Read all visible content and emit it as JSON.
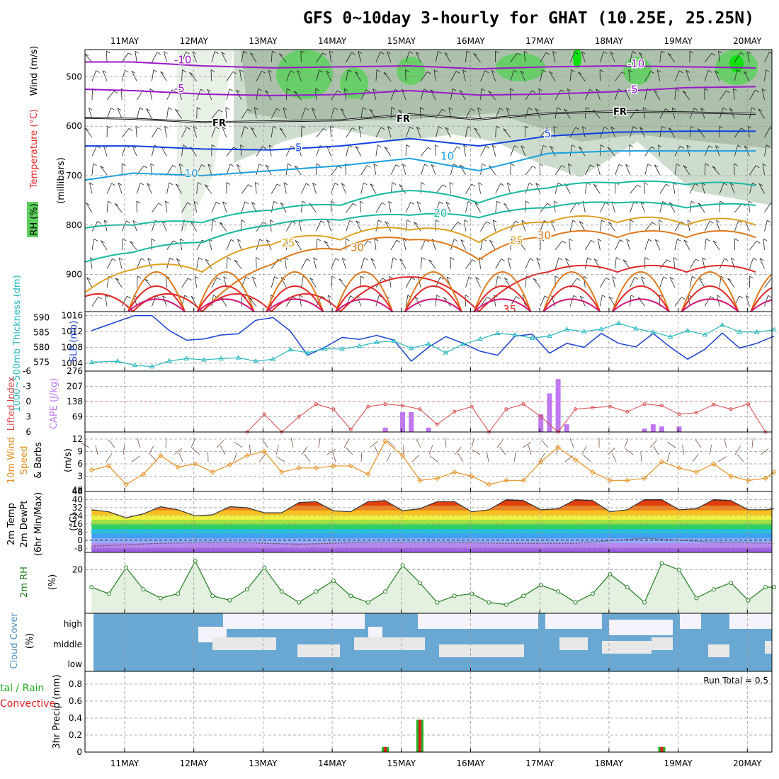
{
  "title": "GFS 0~10day 3-hourly for GHAT (10.25E, 25.25N)",
  "dates": [
    "11MAY",
    "12MAY",
    "13MAY",
    "14MAY",
    "15MAY",
    "16MAY",
    "17MAY",
    "18MAY",
    "19MAY",
    "20MAY"
  ],
  "colors": {
    "rh_light": "#e6f0e2",
    "rh_mid": "#c8d8c8",
    "rh_dark": "#a8bca8",
    "rh_green": "#5cd05c",
    "rh_bright": "#10e010",
    "purple": "#9a18c8",
    "blue": "#1040e0",
    "cyan": "#18a0e0",
    "teal": "#18b8a0",
    "gold": "#e0a020",
    "orange": "#e07818",
    "red": "#e02828",
    "magenta": "#d0187a",
    "slp": "#1840d0",
    "thickness": "#28b8c0",
    "lifted": "#d84848",
    "cape": "#c078f0",
    "wind10": "#e89020",
    "cloud": "#6aa8d4",
    "precip_total": "#20b020",
    "precip_conv": "#e02020"
  },
  "panels": {
    "upper": {
      "ylabel_wind": "Wind (m/s)",
      "ylabel_temp": "Temperature (°C)",
      "ylabel_rh": "RH (%)",
      "ylabel_units": "(millibars)",
      "yticks": [
        500,
        600,
        700,
        800,
        900
      ],
      "fr_label": "FR",
      "contour_labels": [
        {
          "t": -10,
          "at": [
            1.35,
            7.9
          ]
        },
        {
          "t": -5,
          "at": [
            1.35,
            7.9
          ]
        },
        {
          "t": 5,
          "at": [
            -0.2,
            3.1,
            6.7
          ]
        },
        {
          "t": 10,
          "at": [
            1.5,
            5.2
          ]
        },
        {
          "t": 15,
          "at": [
            -0.4
          ]
        },
        {
          "t": 20,
          "at": [
            5.1
          ]
        },
        {
          "t": 25,
          "at": [
            2.9,
            6.2
          ]
        },
        {
          "t": 30,
          "at": [
            3.9,
            6.6
          ]
        },
        {
          "t": 35,
          "at": [
            6.1
          ]
        }
      ]
    },
    "pressure": {
      "ylabel_left": "1000~500mb Thickness (dm)",
      "ylabel_right": "SLP (mb)",
      "left_ticks": [
        575,
        580,
        585,
        590
      ],
      "right_ticks": [
        1004,
        1008,
        1012,
        1016
      ]
    },
    "instability": {
      "ylabel_left": "Lifted Index",
      "ylabel_right": "CAPE (J/kg)",
      "left_ticks": [
        "-6",
        "-3",
        "0",
        "3",
        "6"
      ],
      "right_ticks": [
        "276",
        "207",
        "138",
        "69"
      ]
    },
    "wind10": {
      "ylabel_a": "10m Wind",
      "ylabel_b": "Speed",
      "ylabel_c": "& Barbs",
      "ylabel_units": "(m/s)",
      "yticks": [
        48,
        3,
        6,
        9,
        12
      ]
    },
    "temp2m": {
      "ylabel_a": "2m Temp",
      "ylabel_b": "2m DewPt",
      "ylabel_c": "(6hr Min/Max)",
      "ylabel_units": "(°C)",
      "yticks": [
        -8,
        0,
        8,
        16,
        24,
        32,
        40,
        48
      ]
    },
    "rh2m": {
      "ylabel": "2m RH",
      "ylabel_units": "(%)",
      "yticks": [
        20
      ]
    },
    "cloud": {
      "ylabel": "Cloud Cover",
      "ylabel_units": "(%)",
      "levels": [
        "high",
        "middle",
        "low"
      ]
    },
    "precip": {
      "ylabel_a": "tal / Rain",
      "ylabel_b": "Convective",
      "ylabel_units": "3hr Precip (mm)",
      "yticks": [
        "0",
        "0.2",
        "0.4",
        "0.6",
        "0.8"
      ],
      "run_total_label": "Run Total = 0.5"
    }
  },
  "chart_data": [
    {
      "type": "line",
      "name": "upper-air cross-section (isotherms, RH shading, wind barbs)",
      "y_unit": "millibars",
      "ylim": [
        975,
        445
      ],
      "x_days": [
        0,
        1,
        2,
        3,
        4,
        5,
        6,
        7,
        8,
        9,
        10
      ],
      "isotherms": [
        {
          "t": -10,
          "p": [
            470,
            470,
            478,
            482,
            480,
            478,
            484,
            480,
            478,
            480,
            482
          ]
        },
        {
          "t": -5,
          "p": [
            524,
            528,
            535,
            538,
            536,
            528,
            537,
            535,
            530,
            522,
            520
          ]
        },
        {
          "t": 0,
          "p": [
            582,
            585,
            592,
            590,
            588,
            576,
            586,
            574,
            570,
            572,
            575
          ]
        },
        {
          "t": 5,
          "p": [
            640,
            640,
            646,
            648,
            640,
            625,
            640,
            620,
            612,
            610,
            610
          ]
        },
        {
          "t": 10,
          "p": [
            715,
            695,
            700,
            690,
            680,
            665,
            690,
            655,
            650,
            650,
            650
          ]
        },
        {
          "t": 15,
          "p": [
            815,
            800,
            795,
            770,
            760,
            730,
            755,
            725,
            715,
            718,
            720
          ]
        },
        {
          "t": 20,
          "p": [
            890,
            855,
            835,
            800,
            790,
            780,
            785,
            765,
            755,
            765,
            760
          ]
        },
        {
          "t": 25,
          "p": [
            975,
            890,
            895,
            840,
            830,
            810,
            835,
            795,
            795,
            800,
            800
          ]
        },
        {
          "t": 30,
          "p": [
            975,
            975,
            975,
            880,
            850,
            830,
            870,
            825,
            825,
            825,
            825
          ]
        },
        {
          "t": 35,
          "p": [
            975,
            975,
            975,
            975,
            975,
            905,
            975,
            895,
            895,
            895,
            895
          ]
        }
      ],
      "rh_percent": [
        5,
        8,
        25,
        45,
        55,
        40,
        55,
        55,
        45,
        45,
        40
      ]
    },
    {
      "type": "line",
      "name": "sea level pressure",
      "y_unit": "mb",
      "ylim": [
        1002,
        1017
      ],
      "x_hours": [
        0,
        9,
        15,
        21,
        27,
        33,
        39,
        45,
        51,
        57,
        63,
        69,
        75,
        81,
        87,
        93,
        99,
        105,
        111,
        117,
        123,
        129,
        135,
        141,
        147,
        153,
        159,
        165,
        171,
        177,
        183,
        189,
        195,
        201,
        207,
        213,
        219,
        225,
        231,
        237
      ],
      "values": [
        1012.2,
        1014.5,
        1016,
        1016,
        1012.2,
        1009.8,
        1010.1,
        1011.1,
        1011.4,
        1014.8,
        1015.5,
        1012.1,
        1006,
        1008,
        1010.5,
        1010,
        1011,
        1009.8,
        1004.5,
        1008,
        1010.7,
        1009,
        1007,
        1006,
        1010.8,
        1011.3,
        1006.5,
        1009,
        1008,
        1011.5,
        1009,
        1008.1,
        1011.5,
        1008,
        1005,
        1007.5,
        1011.6,
        1007.8,
        1009,
        1010.8
      ]
    },
    {
      "type": "line",
      "name": "1000-500mb thickness",
      "y_unit": "dm",
      "ylim": [
        572,
        592
      ],
      "x_hours": [
        0,
        9,
        15,
        21,
        27,
        33,
        39,
        45,
        51,
        57,
        63,
        69,
        75,
        81,
        87,
        93,
        99,
        105,
        111,
        117,
        123,
        129,
        135,
        141,
        147,
        153,
        159,
        165,
        171,
        177,
        183,
        189,
        195,
        201,
        207,
        213,
        219,
        225,
        231,
        237
      ],
      "values": [
        575,
        575.3,
        574,
        573.5,
        575.4,
        576.2,
        575.8,
        576.2,
        576.5,
        575.3,
        576,
        579.2,
        578.2,
        579.5,
        579.4,
        580.4,
        581.7,
        582.1,
        579.7,
        581.1,
        578.2,
        581,
        582.8,
        584.7,
        584.2,
        583.1,
        583.8,
        586,
        585.3,
        586.1,
        588.1,
        586.3,
        585.1,
        583.5,
        585.6,
        584.2,
        587.5,
        585.2,
        585.1,
        585.9
      ]
    },
    {
      "type": "line",
      "name": "lifted index",
      "y_unit": "C",
      "ylim": [
        6,
        -6
      ],
      "x_hours": [
        54,
        60,
        66,
        72,
        78,
        84,
        90,
        96,
        102,
        108,
        114,
        120,
        126,
        132,
        138,
        144,
        150,
        156,
        162,
        168,
        174,
        180,
        186,
        192,
        198,
        204,
        210,
        216,
        222,
        228,
        234
      ],
      "values": [
        6,
        2.5,
        6,
        3,
        0.5,
        1.5,
        5.5,
        1,
        0.5,
        0.8,
        1.5,
        4.5,
        2,
        1,
        6,
        1.5,
        0.5,
        3,
        6,
        1.5,
        1.2,
        1,
        2,
        0.5,
        0.8,
        2.5,
        2.2,
        0.6,
        1.5,
        0.5,
        6
      ]
    },
    {
      "type": "bar",
      "name": "CAPE",
      "y_unit": "J/kg",
      "ylim": [
        0,
        276
      ],
      "x_hours": [
        102,
        108,
        111,
        117,
        156,
        159,
        162,
        165,
        192,
        195,
        198,
        204
      ],
      "values": [
        20,
        90,
        90,
        20,
        80,
        175,
        240,
        35,
        15,
        35,
        25,
        25
      ]
    },
    {
      "type": "line",
      "name": "10m wind speed",
      "y_unit": "m/s",
      "ylim": [
        0,
        12
      ],
      "x_hours": [
        0,
        6,
        12,
        18,
        24,
        30,
        36,
        42,
        48,
        54,
        60,
        66,
        72,
        78,
        84,
        90,
        96,
        102,
        108,
        114,
        120,
        126,
        132,
        138,
        144,
        150,
        156,
        162,
        168,
        174,
        180,
        186,
        192,
        198,
        204,
        210,
        216,
        222,
        228,
        234,
        237
      ],
      "values": [
        4.5,
        5.5,
        1,
        3.5,
        8,
        5.2,
        6,
        4,
        5.8,
        8,
        9,
        4,
        5,
        5,
        5.5,
        5.5,
        3.5,
        11.5,
        8,
        2,
        2.5,
        4,
        3,
        1,
        2,
        2,
        6.5,
        10,
        7,
        4,
        2,
        2,
        2.5,
        6.5,
        5,
        4,
        6,
        3,
        2,
        2.5,
        4
      ]
    },
    {
      "type": "area",
      "name": "2m temperature",
      "y_unit": "C",
      "ylim": [
        -12,
        48
      ],
      "x_hours": [
        0,
        6,
        12,
        18,
        24,
        30,
        36,
        42,
        48,
        54,
        60,
        66,
        72,
        78,
        84,
        90,
        96,
        102,
        108,
        114,
        120,
        126,
        132,
        138,
        144,
        150,
        156,
        162,
        168,
        174,
        180,
        186,
        192,
        198,
        204,
        210,
        216,
        222,
        228,
        234,
        237
      ],
      "values": [
        30,
        28,
        22,
        26,
        33,
        30,
        24,
        25,
        33,
        32,
        27,
        27,
        37,
        38,
        29,
        28,
        38,
        39,
        29,
        31,
        38,
        38,
        28,
        30,
        40,
        39,
        30,
        31,
        40,
        39,
        28,
        30,
        40,
        40,
        30,
        31,
        40,
        39,
        30,
        30,
        31
      ]
    },
    {
      "type": "line",
      "name": "2m dew point",
      "y_unit": "C",
      "ylim": [
        -12,
        48
      ],
      "x_hours": [
        0,
        24,
        48,
        72,
        96,
        120,
        144,
        168,
        192,
        204,
        216,
        237
      ],
      "values": [
        -6,
        -3,
        -2,
        -4,
        -2,
        -2,
        -3,
        -3,
        2,
        0,
        -2,
        -3
      ]
    },
    {
      "type": "line",
      "name": "2m relative humidity",
      "y_unit": "%",
      "ylim": [
        0,
        28
      ],
      "x_hours": [
        0,
        6,
        12,
        18,
        24,
        30,
        36,
        42,
        48,
        54,
        60,
        66,
        72,
        78,
        84,
        90,
        96,
        102,
        108,
        114,
        120,
        126,
        132,
        138,
        144,
        150,
        156,
        162,
        168,
        174,
        180,
        186,
        192,
        198,
        204,
        210,
        216,
        222,
        228,
        234,
        237
      ],
      "values": [
        12,
        9,
        21,
        11,
        7,
        9,
        24,
        8,
        6,
        11,
        21,
        10,
        5,
        10,
        15,
        8,
        5,
        10,
        22,
        14,
        5,
        8,
        9,
        5,
        4,
        8,
        13,
        10,
        5,
        9,
        18,
        12,
        5,
        23,
        20,
        7,
        11,
        14,
        6,
        12,
        12
      ]
    },
    {
      "type": "bar",
      "name": "3hr total precipitation",
      "y_unit": "mm",
      "ylim": [
        0,
        0.95
      ],
      "x_hours": [
        102,
        114,
        198
      ],
      "values": [
        0.06,
        0.38,
        0.06
      ]
    },
    {
      "type": "bar",
      "name": "3hr convective precipitation",
      "y_unit": "mm",
      "ylim": [
        0,
        0.95
      ],
      "x_hours": [
        102,
        114,
        198
      ],
      "values": [
        0.06,
        0.38,
        0.06
      ]
    }
  ]
}
